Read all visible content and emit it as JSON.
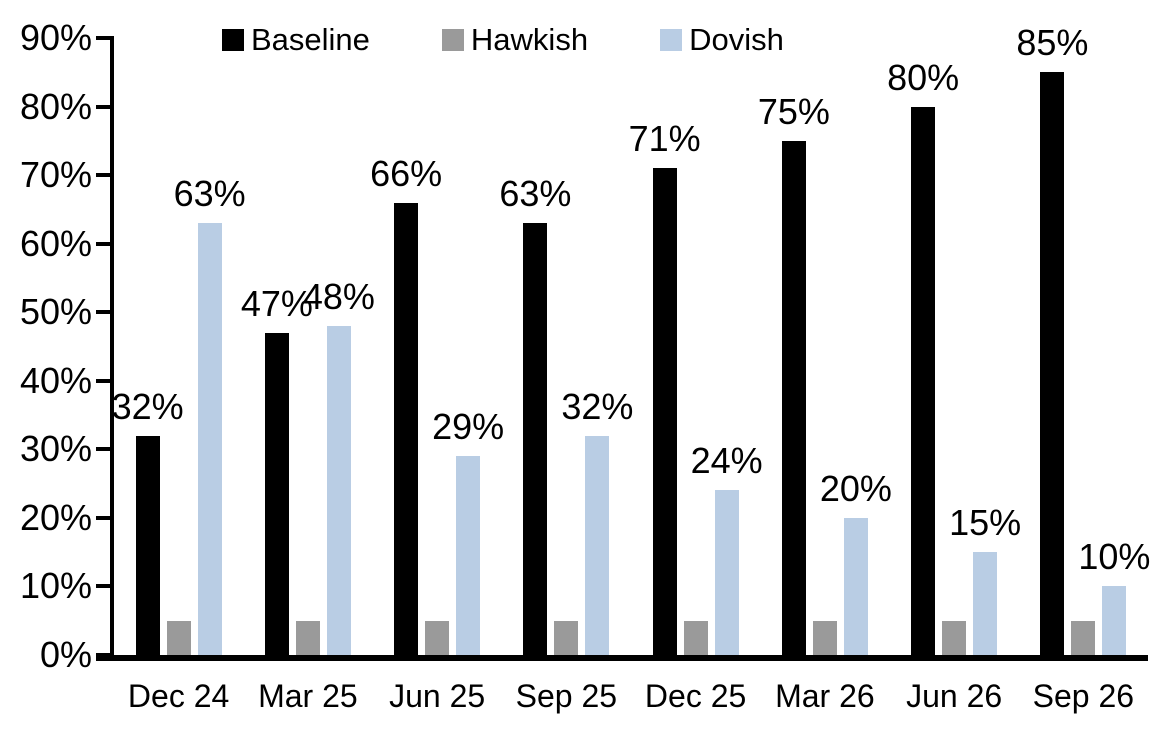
{
  "chart_data": {
    "type": "bar",
    "title": "",
    "categories": [
      "Dec 24",
      "Mar 25",
      "Jun 25",
      "Sep 25",
      "Dec 25",
      "Mar 26",
      "Jun 26",
      "Sep 26"
    ],
    "series": [
      {
        "name": "Baseline",
        "color": "#000000",
        "show_labels": true,
        "values": [
          32,
          47,
          66,
          63,
          71,
          75,
          80,
          85
        ]
      },
      {
        "name": "Hawkish",
        "color": "#9a9a9a",
        "show_labels": false,
        "values": [
          5,
          5,
          5,
          5,
          5,
          5,
          5,
          5
        ]
      },
      {
        "name": "Dovish",
        "color": "#b9cde4",
        "show_labels": true,
        "values": [
          63,
          48,
          29,
          32,
          24,
          20,
          15,
          10
        ]
      }
    ],
    "value_suffix": "%",
    "y_axis": {
      "min": 0,
      "max": 90,
      "step": 10,
      "tick_suffix": "%",
      "tick_labels": [
        "0%",
        "10%",
        "20%",
        "30%",
        "40%",
        "50%",
        "60%",
        "70%",
        "80%",
        "90%"
      ]
    },
    "xlabel": "",
    "ylabel": "",
    "grid": false,
    "legend_position": "top",
    "colors": {
      "axis": "#000000",
      "background": "#ffffff",
      "text": "#000000"
    }
  }
}
